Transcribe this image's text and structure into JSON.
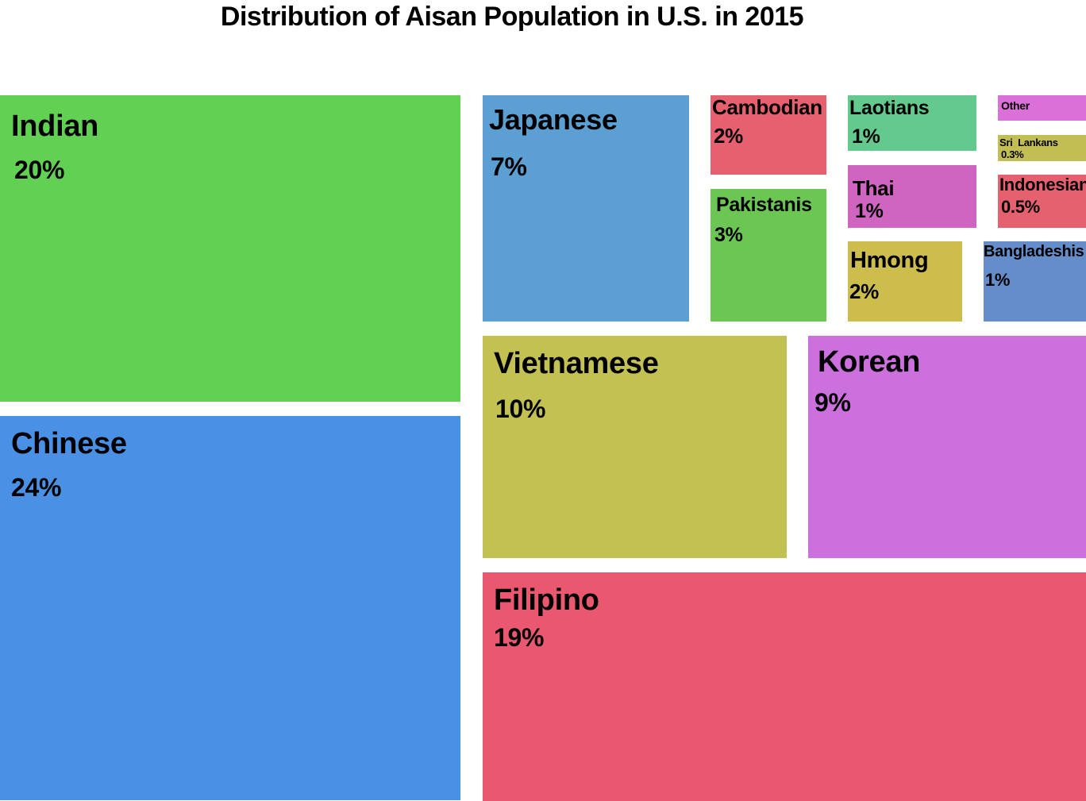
{
  "chart_data": {
    "type": "treemap",
    "title": "Distribution of Aisan Population in U.S. in 2015",
    "items": [
      {
        "label": "Indian",
        "value_label": "20%",
        "value": 20,
        "color": "#62d153"
      },
      {
        "label": "Chinese",
        "value_label": "24%",
        "value": 24,
        "color": "#4a90e4"
      },
      {
        "label": "Japanese",
        "value_label": "7%",
        "value": 7,
        "color": "#5b9fd3"
      },
      {
        "label": "Cambodian",
        "value_label": "2%",
        "value": 2,
        "color": "#e66070"
      },
      {
        "label": "Pakistanis",
        "value_label": "3%",
        "value": 3,
        "color": "#6bc654"
      },
      {
        "label": "Laotians",
        "value_label": "1%",
        "value": 1,
        "color": "#63c98d"
      },
      {
        "label": "Thai",
        "value_label": "1%",
        "value": 1,
        "color": "#d064c1"
      },
      {
        "label": "Hmong",
        "value_label": "2%",
        "value": 2,
        "color": "#cdbd4c"
      },
      {
        "label": "Other",
        "value_label": "",
        "value": null,
        "color": "#db70d9"
      },
      {
        "label": "Sri  Lankans",
        "value_label": "0.3%",
        "value": 0.3,
        "color": "#c2be54"
      },
      {
        "label": "Indonesian",
        "value_label": "0.5%",
        "value": 0.5,
        "color": "#e66170"
      },
      {
        "label": "Bangladeshis",
        "value_label": "1%",
        "value": 1,
        "color": "#648dca"
      },
      {
        "label": "Vietnamese",
        "value_label": "10%",
        "value": 10,
        "color": "#c3c152"
      },
      {
        "label": "Korean",
        "value_label": "9%",
        "value": 9,
        "color": "#cb70dd"
      },
      {
        "label": "Filipino",
        "value_label": "19%",
        "value": 19,
        "color": "#ea5870"
      }
    ]
  }
}
